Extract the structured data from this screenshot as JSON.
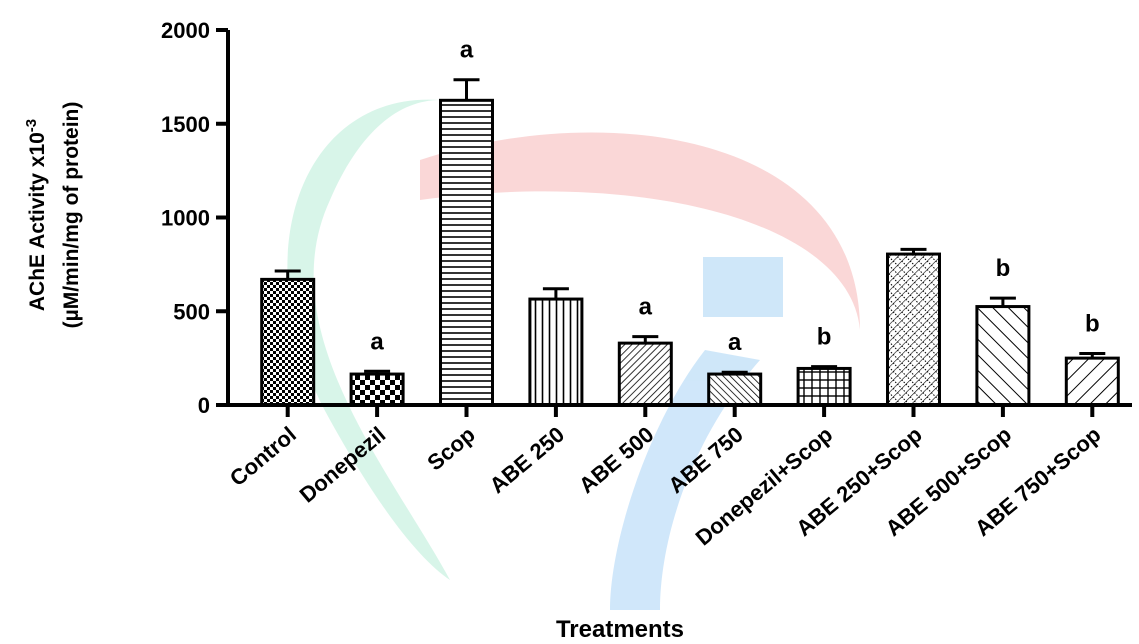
{
  "chart_data": {
    "type": "bar",
    "title": "",
    "xlabel": "Treatments",
    "ylabel_line1": "AChE Activity x10",
    "ylabel_superscript": "-3",
    "ylabel_line2": "(µM/min/mg of protein)",
    "ylim": [
      0,
      2000
    ],
    "yticks": [
      0,
      500,
      1000,
      1500,
      2000
    ],
    "grid": false,
    "categories": [
      "Control",
      "Donepezil",
      "Scop",
      "ABE 250",
      "ABE 500",
      "ABE 750",
      "Donepezil+Scop",
      "ABE 250+Scop",
      "ABE 500+Scop",
      "ABE 750+Scop"
    ],
    "values": [
      670,
      165,
      1625,
      565,
      330,
      165,
      195,
      805,
      525,
      250
    ],
    "errors": [
      45,
      15,
      110,
      55,
      35,
      10,
      10,
      25,
      45,
      25
    ],
    "significance": [
      "",
      "a",
      "a",
      "",
      "a",
      "a",
      "b",
      "",
      "b",
      "b"
    ],
    "fill_patterns": [
      "checker-fine",
      "checker-coarse",
      "horizontal-lines",
      "vertical-lines",
      "diagonal-fine",
      "diagonal-back-fine",
      "grid",
      "crosshatch-dots",
      "diagonal-back-wide",
      "diagonal-wide"
    ]
  }
}
